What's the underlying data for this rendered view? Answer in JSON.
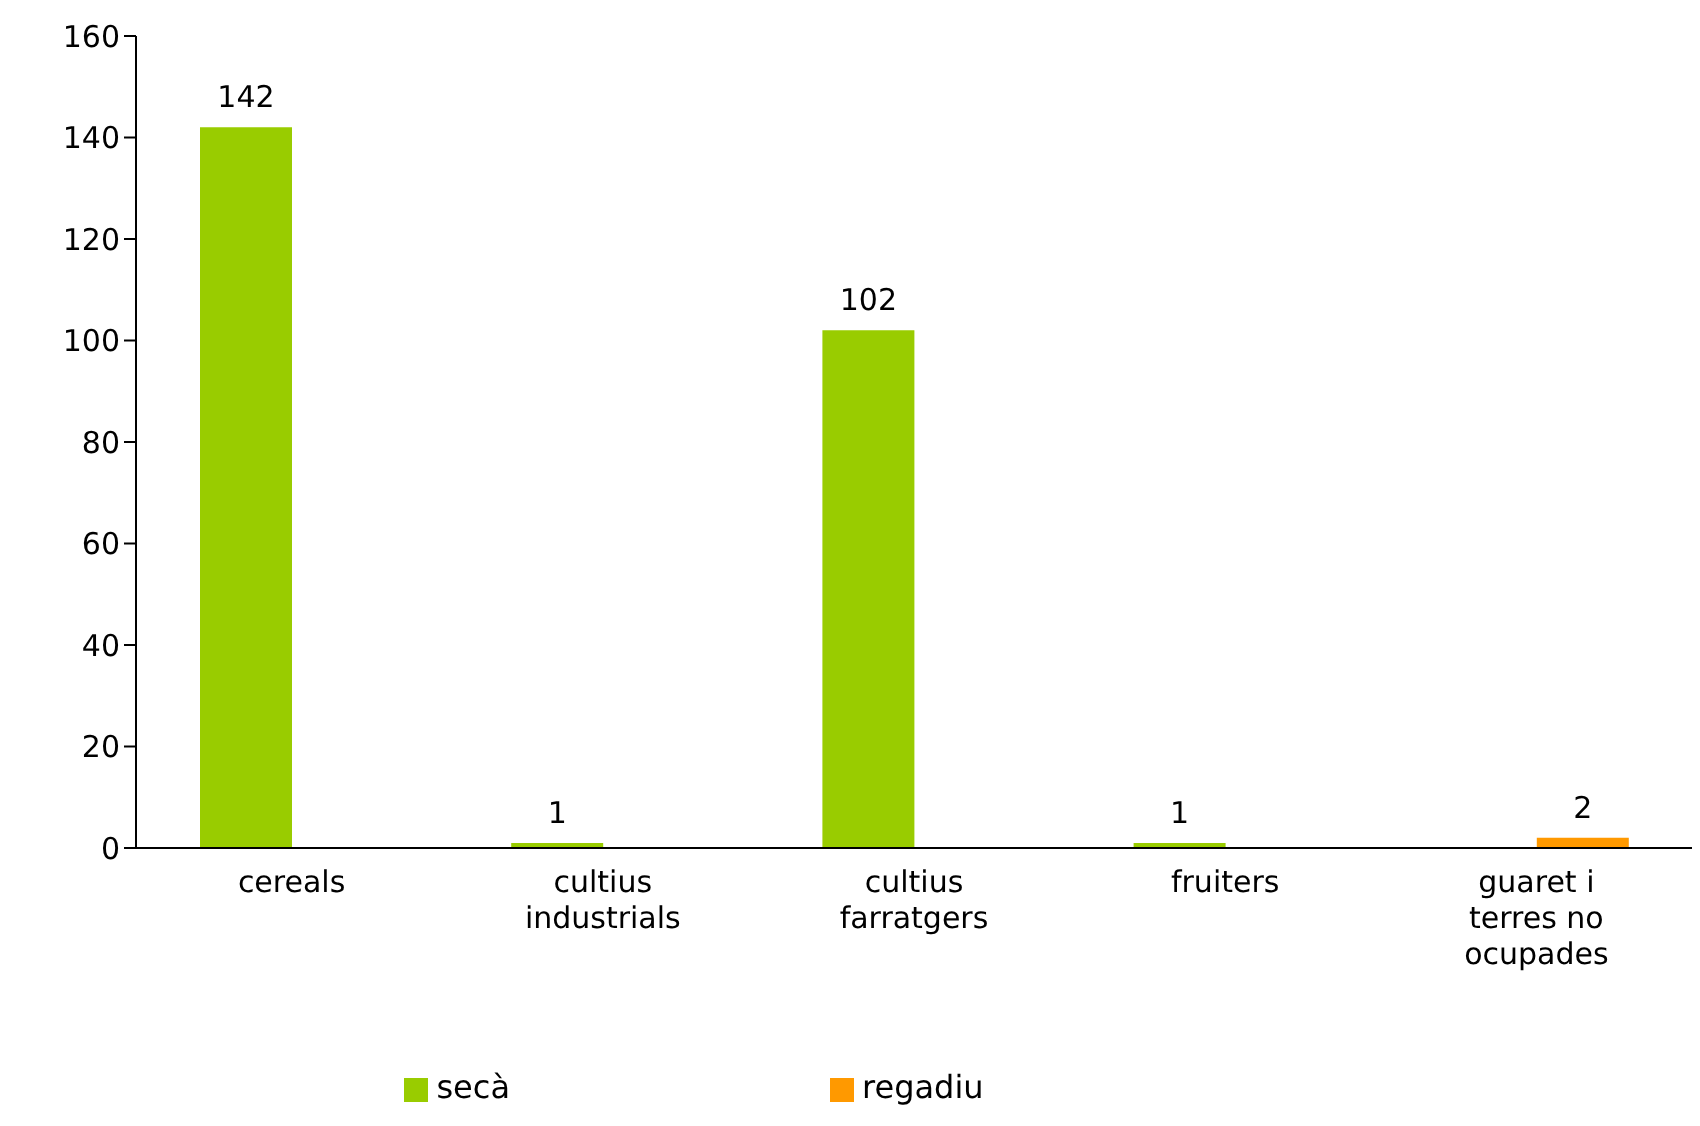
{
  "chart_data": {
    "type": "bar",
    "categories": [
      "cereals",
      "cultius industrials",
      "cultius farratgers",
      "fruiters",
      "guaret i terres no ocupades"
    ],
    "series": [
      {
        "name": "secà",
        "color": "#99cc00",
        "values": [
          142,
          1,
          102,
          1,
          null
        ],
        "value_labels": [
          "142",
          "1",
          "102",
          "1",
          null
        ]
      },
      {
        "name": "regadiu",
        "color": "#ff9900",
        "values": [
          null,
          null,
          null,
          null,
          2
        ],
        "value_labels": [
          null,
          null,
          null,
          null,
          "2"
        ]
      }
    ],
    "ylim": [
      0,
      160
    ],
    "yticks": [
      0,
      20,
      40,
      60,
      80,
      100,
      120,
      140,
      160
    ],
    "grid": false,
    "legend": "bottom"
  }
}
